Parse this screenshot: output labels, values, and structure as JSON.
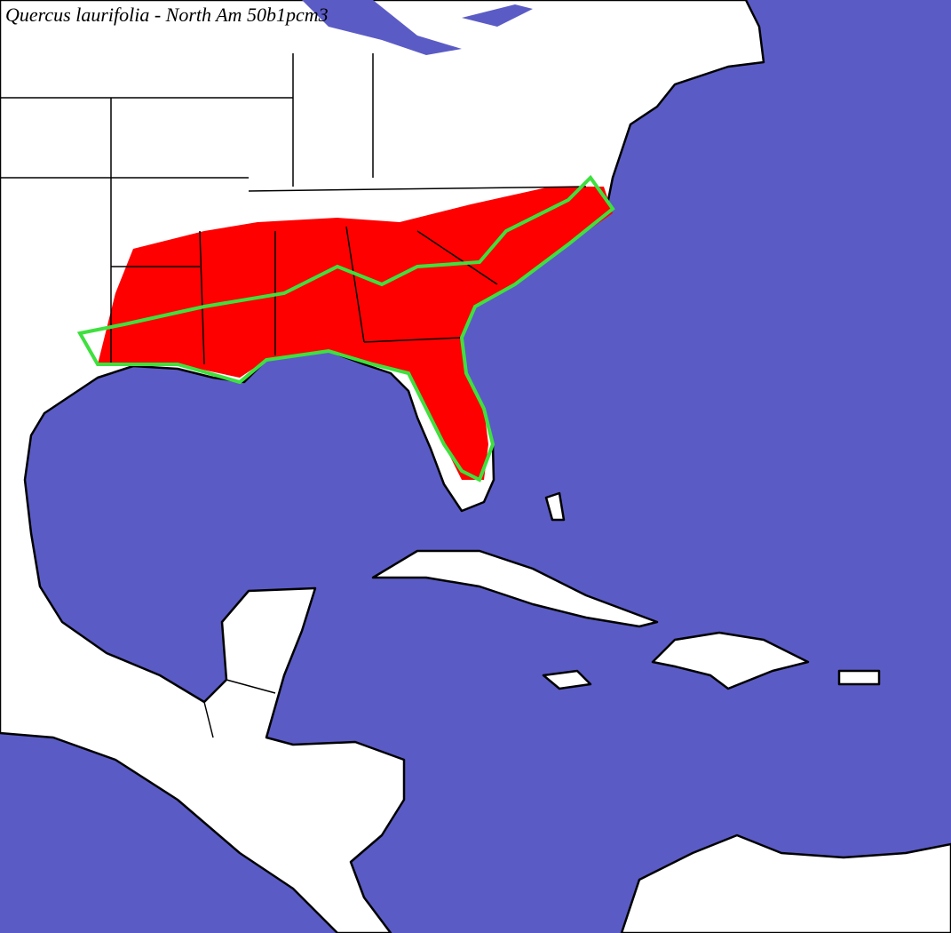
{
  "header": {
    "title": "Quercus laurifolia - North Am 50b1pcm3"
  }
}
